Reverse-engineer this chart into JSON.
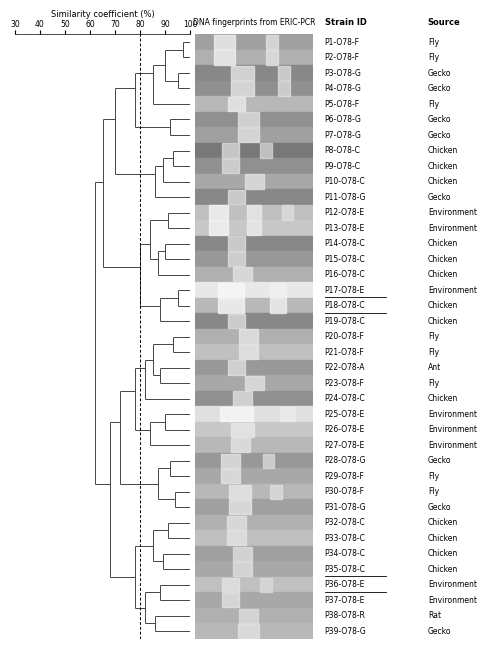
{
  "strain_ids": [
    "P1-O78-F",
    "P2-O78-F",
    "P3-O78-G",
    "P4-O78-G",
    "P5-O78-F",
    "P6-O78-G",
    "P7-O78-G",
    "P8-O78-C",
    "P9-O78-C",
    "P10-O78-C",
    "P11-O78-G",
    "P12-O78-E",
    "P13-O78-E",
    "P14-O78-C",
    "P15-O78-C",
    "P16-O78-C",
    "P17-O78-E",
    "P18-O78-C",
    "P19-O78-C",
    "P20-O78-F",
    "P21-O78-F",
    "P22-O78-A",
    "P23-O78-F",
    "P24-O78-C",
    "P25-O78-E",
    "P26-O78-E",
    "P27-O78-E",
    "P28-O78-G",
    "P29-O78-F",
    "P30-O78-F",
    "P31-O78-G",
    "P32-O78-C",
    "P33-O78-C",
    "P34-O78-C",
    "P35-O78-C",
    "P36-O78-E",
    "P37-O78-E",
    "P38-O78-R",
    "P39-O78-G"
  ],
  "sources": [
    "Fly",
    "Fly",
    "Gecko",
    "Gecko",
    "Fly",
    "Gecko",
    "Gecko",
    "Chicken",
    "Chicken",
    "Chicken",
    "Gecko",
    "Environment",
    "Environment",
    "Chicken",
    "Chicken",
    "Chicken",
    "Environment",
    "Chicken",
    "Chicken",
    "Fly",
    "Fly",
    "Ant",
    "Fly",
    "Chicken",
    "Environment",
    "Environment",
    "Environment",
    "Gecko",
    "Fly",
    "Fly",
    "Gecko",
    "Chicken",
    "Chicken",
    "Chicken",
    "Chicken",
    "Environment",
    "Environment",
    "Rat",
    "Gecko"
  ],
  "underlined": [
    16,
    17,
    34,
    35
  ],
  "x_axis_ticks": [
    30,
    40,
    50,
    60,
    70,
    80,
    90,
    100
  ],
  "x_axis_label": "Similarity coefficient (%)",
  "gel_image_label": "DNA fingerprints from ERIC-PCR",
  "strain_id_label": "Strain ID",
  "source_label": "Source",
  "dendrogram_color": "#444444",
  "gel_colors": [
    "#a0a0a0",
    "#b0b0b0",
    "#888888",
    "#909090",
    "#b8b8b8",
    "#909090",
    "#a0a0a0",
    "#787878",
    "#909090",
    "#a8a8a8",
    "#888888",
    "#c0c0c0",
    "#c8c8c8",
    "#888888",
    "#989898",
    "#b0b0b0",
    "#e8e8e8",
    "#b8b8b8",
    "#888888",
    "#b0b0b0",
    "#c0c0c0",
    "#989898",
    "#a8a8a8",
    "#909090",
    "#e0e0e0",
    "#c8c8c8",
    "#b8b8b8",
    "#989898",
    "#a8a8a8",
    "#b8b8b8",
    "#a0a0a0",
    "#b0b0b0",
    "#c0c0c0",
    "#a0a0a0",
    "#a8a8a8",
    "#c0c0c0",
    "#a8a8a8",
    "#b0b0b0",
    "#b8b8b8"
  ]
}
